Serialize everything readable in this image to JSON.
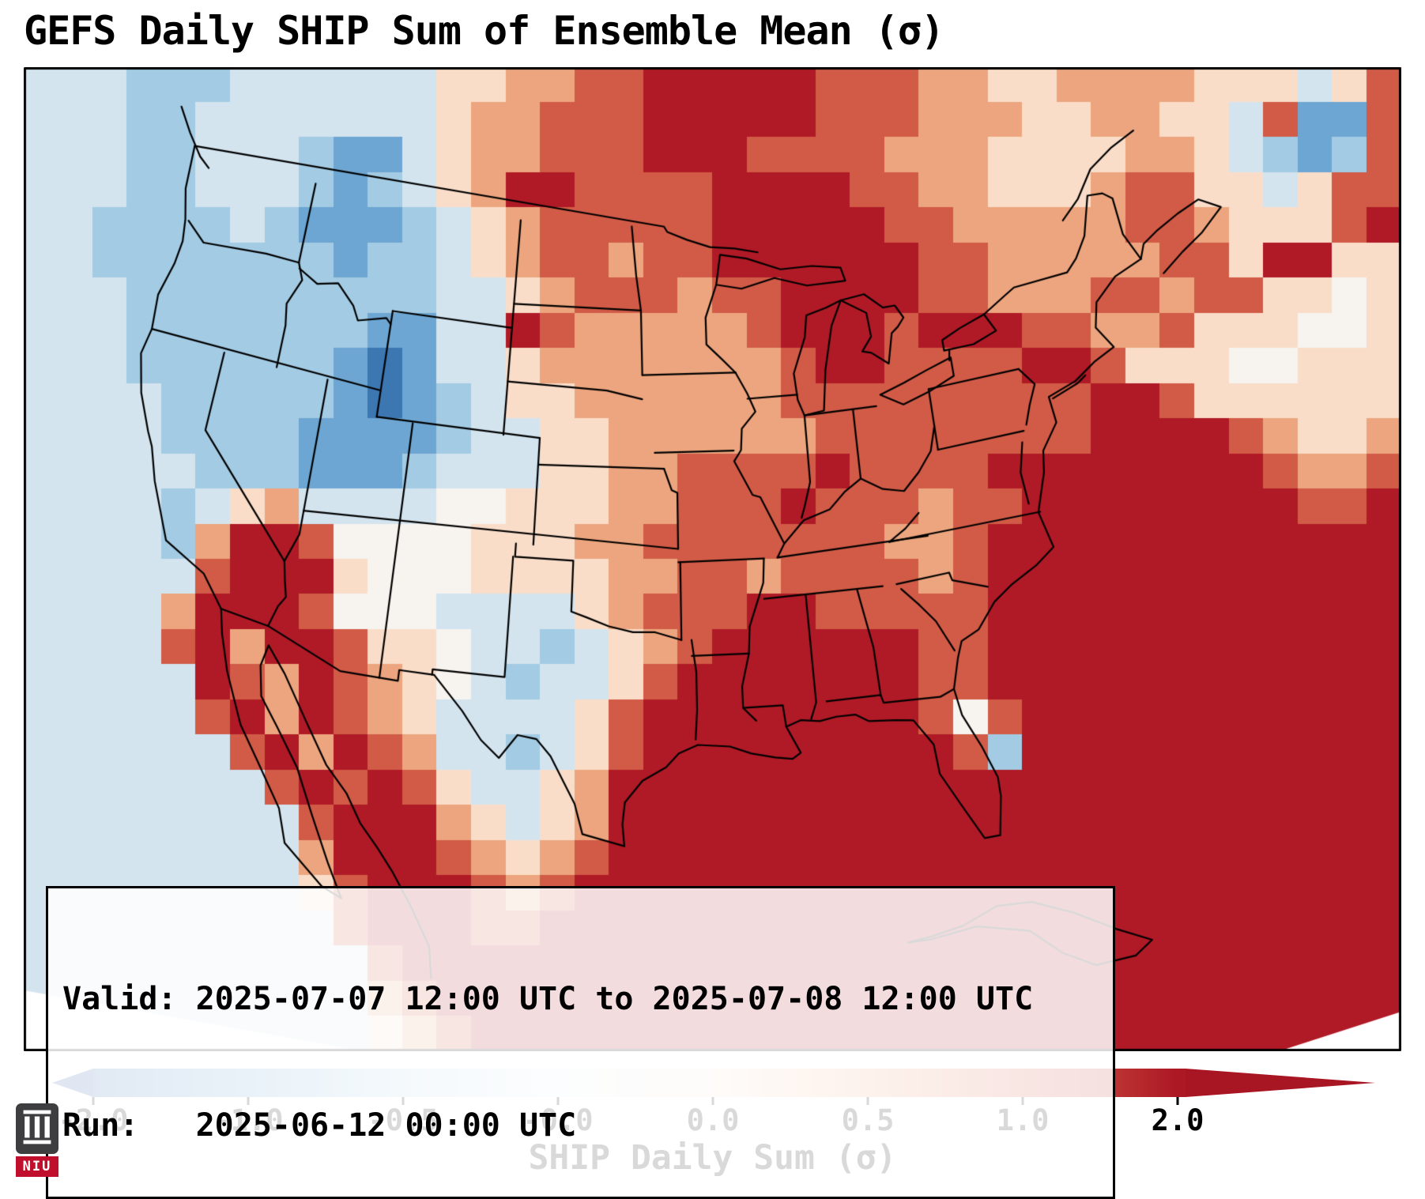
{
  "title": "GEFS Daily SHIP Sum of Ensemble Mean (σ)",
  "info_box": {
    "valid_label": "Valid:",
    "valid_value": "2025-07-07 12:00 UTC to 2025-07-08 12:00 UTC",
    "run_label": "Run:",
    "run_value": "2025-06-12 00:00 UTC"
  },
  "colorbar": {
    "axis_label": "SHIP Daily Sum (σ)",
    "tick_labels": [
      "-2.0",
      "-1.0",
      "-0.5",
      "-0.0",
      "0.0",
      "0.5",
      "1.0",
      "2.0"
    ],
    "gradient_colors": [
      "#3a74b3",
      "#6fa8d3",
      "#b8d7e9",
      "#e9f0f4",
      "#f9e7d9",
      "#efa87f",
      "#d35c47",
      "#ac1824"
    ],
    "under_color": "#2f62a6",
    "over_color": "#a81623"
  },
  "logo": {
    "text": "NIU",
    "icon": "castle-icon",
    "square_color": "#3e3e40",
    "banner_color": "#c00f2d"
  },
  "chart_data": {
    "type": "heatmap",
    "title": "GEFS Daily SHIP Sum of Ensemble Mean (σ)",
    "variable": "SHIP Daily Sum (σ)",
    "valid": "2025-07-07 12:00 UTC to 2025-07-08 12:00 UTC",
    "run": "2025-06-12 00:00 UTC",
    "region": "Continental United States, southern Canada, northern Mexico, Gulf of Mexico and western Atlantic",
    "colorbar_ticks": [
      -2.0,
      -1.0,
      -0.5,
      -0.0,
      0.0,
      0.5,
      1.0,
      2.0
    ],
    "range": [
      -2.0,
      2.0
    ],
    "legend_position": "bottom",
    "grid_on": false,
    "notes": [
      "Strong positive anomalies near +2σ over the Gulf of Mexico, Florida, the Southeast US coast and the western Atlantic",
      "Positive anomalies over the northern Plains, upper Midwest, Great Lakes and an isolated maximum over Arizona/Sonora",
      "Negative anomalies (-0.2 to -2σ) over the Pacific Northwest, Great Basin, Utah and central Texas"
    ],
    "grid": {
      "cols": 40,
      "rows": 28,
      "value_key": {
        "1": -2.0,
        "2": -1.0,
        "3": -0.5,
        "4": -0.2,
        "5": 0.0,
        "6": 0.2,
        "7": 0.5,
        "8": 1.0,
        "9": 2.0
      },
      "rows_encoded": [
        "4443334444446677889999988877667777666468",
        "4443344444446778889999988877766776648228",
        "4443344432246778889998888777666677643238",
        "4443344432346799888899998877666788664688",
        "4433334322234678888899999887777788766689",
        "4433333332334678878899999988777778869966",
        "4443333333334467888788999988777887886656",
        "4443333333224498777778999899988778666556",
        "4443333332124467777777899888899866655666",
        "4444333332123466777777888888888998666666",
        "4444333322223446677777788888888999987667",
        "4444433322234446677888898888999999998778",
        "4444346744445566677888988878899999999889",
        "4444379985555666778888888778999999999999",
        "4444489996555666677887888878999999999999",
        "4444799985554444678889988888999999999999",
        "4444897998665443467899999988 99999999999",
        "4444498798765434468999999988999999999999",
        "4444489798764444689999999985899999999999",
        "4444448979874434689999999998399999999999",
        "4444444898986446799999999999999999999999",
        "4444444489997646799999999999999999999999",
        "4444444479998767899999999999999999999999",
        "4444444468999878999999999999999999999999",
        "4444444448999889999999999999999999999999",
        "4444444444899999999999999999999999999999",
        "4444444444789999999999999999999999999999",
        "4444444444678999999999999999999999999999"
      ]
    },
    "palette": {
      "1": "#3c77b2",
      "2": "#6da6d2",
      "3": "#a3cbe3",
      "4": "#d3e4ef",
      "5": "#f7f3ef",
      "6": "#f9ddc9",
      "7": "#eca57e",
      "8": "#d15b47",
      "9": "#b01a26"
    }
  }
}
